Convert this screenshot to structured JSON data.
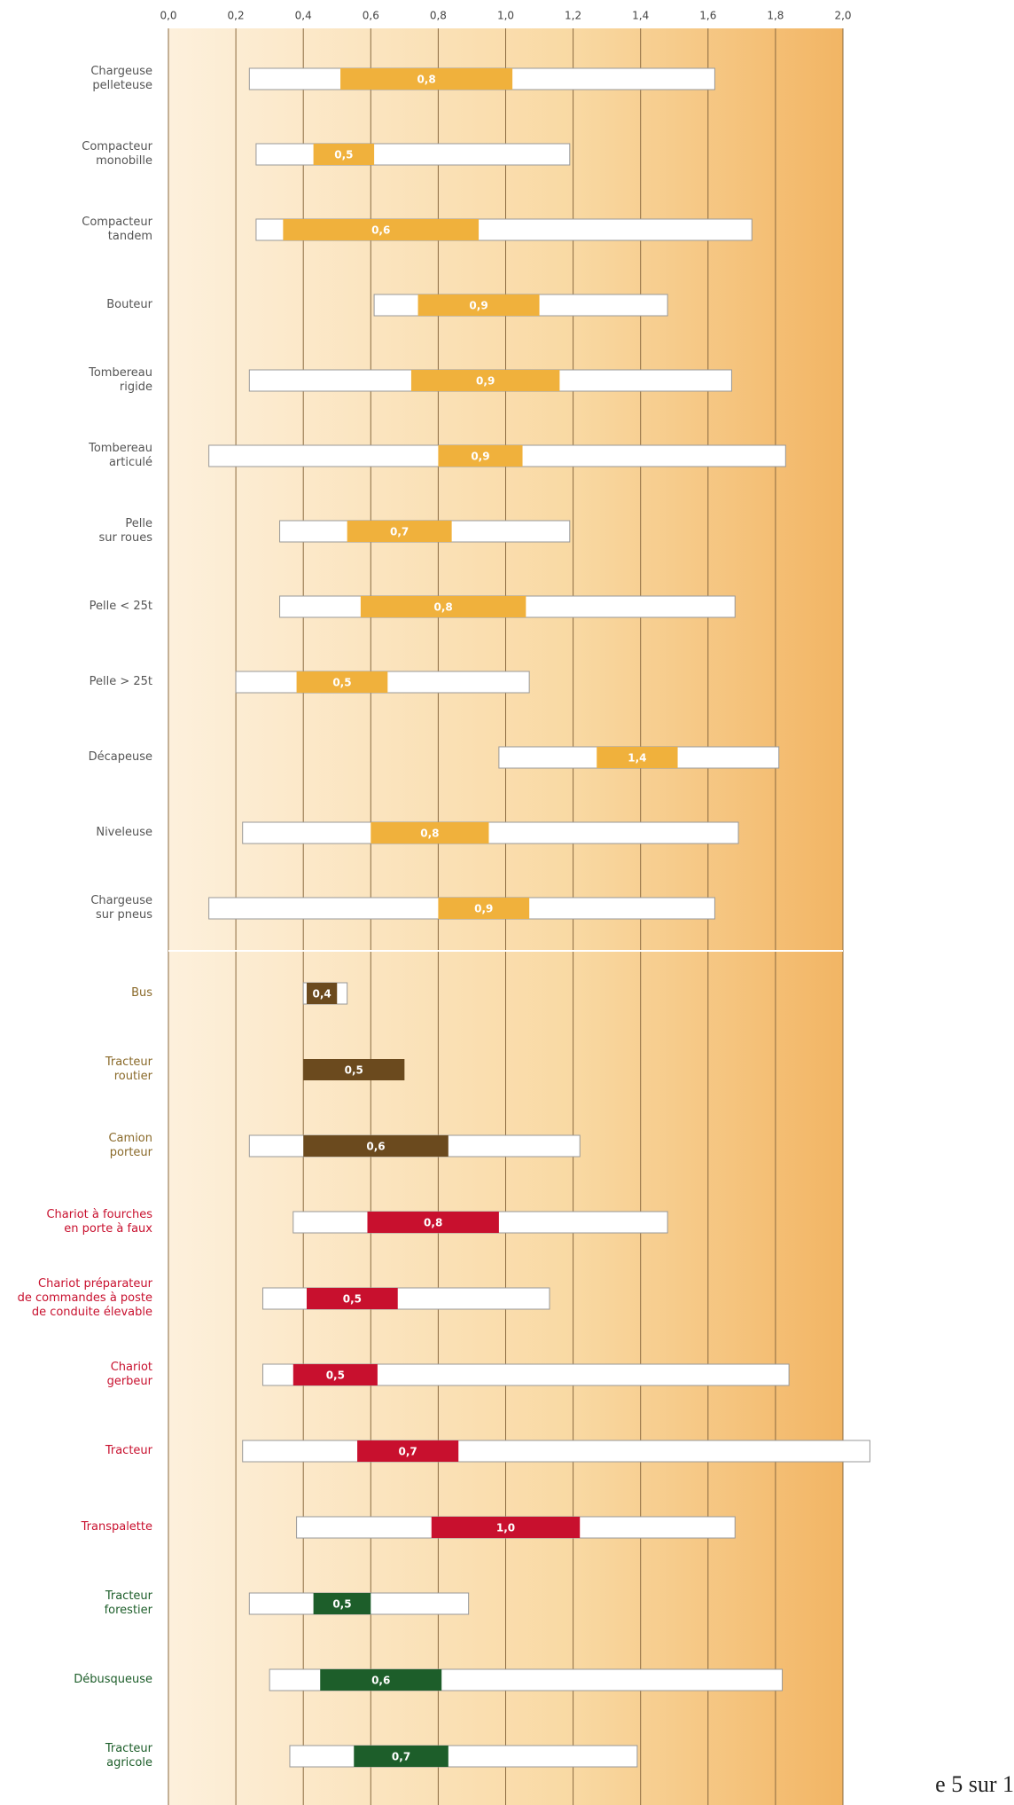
{
  "chart_data": {
    "type": "range-bar",
    "categories": [
      "Chargeuse\npelleteuse",
      "Compacteur\nmonobille",
      "Compacteur\ntandem",
      "Bouteur",
      "Tombereau\nrigide",
      "Tombereau\narticulé",
      "Pelle\nsur roues",
      "Pelle < 25t",
      "Pelle > 25t",
      "Décapeuse",
      "Niveleuse",
      "Chargeuse\nsur pneus",
      "Bus",
      "Tracteur\nroutier",
      "Camion\nporteur",
      "Chariot à fourches\nen porte à faux",
      "Chariot préparateur\nde commandes à poste\nde conduite élevable",
      "Chariot\ngerbeur",
      "Tracteur",
      "Transpalette",
      "Tracteur\nforestier",
      "Débusqueuse",
      "Tracteur\nagricole"
    ],
    "ranges": [
      [
        0.24,
        1.62
      ],
      [
        0.26,
        1.19
      ],
      [
        0.26,
        1.73
      ],
      [
        0.61,
        1.48
      ],
      [
        0.24,
        1.67
      ],
      [
        0.12,
        1.83
      ],
      [
        0.33,
        1.19
      ],
      [
        0.33,
        1.68
      ],
      [
        0.2,
        1.07
      ],
      [
        0.98,
        1.81
      ],
      [
        0.22,
        1.69
      ],
      [
        0.12,
        1.62
      ],
      [
        0.4,
        0.53
      ],
      null,
      [
        0.24,
        1.22
      ],
      [
        0.37,
        1.48
      ],
      [
        0.28,
        1.13
      ],
      [
        0.28,
        1.84
      ],
      [
        0.22,
        2.08
      ],
      [
        0.38,
        1.68
      ],
      [
        0.24,
        0.89
      ],
      [
        0.3,
        1.82
      ],
      [
        0.36,
        1.39
      ]
    ],
    "typical": [
      [
        0.51,
        1.02
      ],
      [
        0.43,
        0.61
      ],
      [
        0.34,
        0.92
      ],
      [
        0.74,
        1.1
      ],
      [
        0.72,
        1.16
      ],
      [
        0.8,
        1.05
      ],
      [
        0.53,
        0.84
      ],
      [
        0.57,
        1.06
      ],
      [
        0.38,
        0.65
      ],
      [
        1.27,
        1.51
      ],
      [
        0.6,
        0.95
      ],
      [
        0.8,
        1.07
      ],
      [
        0.41,
        0.5
      ],
      [
        0.4,
        0.7
      ],
      [
        0.4,
        0.83
      ],
      [
        0.59,
        0.98
      ],
      [
        0.41,
        0.68
      ],
      [
        0.37,
        0.62
      ],
      [
        0.56,
        0.86
      ],
      [
        0.78,
        1.22
      ],
      [
        0.43,
        0.6
      ],
      [
        0.45,
        0.81
      ],
      [
        0.55,
        0.83
      ]
    ],
    "values": [
      0.8,
      0.5,
      0.6,
      0.9,
      0.9,
      0.9,
      0.7,
      0.8,
      0.5,
      1.4,
      0.8,
      0.9,
      0.4,
      0.5,
      0.6,
      0.8,
      0.5,
      0.5,
      0.7,
      1.0,
      0.5,
      0.6,
      0.7
    ],
    "value_labels": [
      "0,8",
      "0,5",
      "0,6",
      "0,9",
      "0,9",
      "0,9",
      "0,7",
      "0,8",
      "0,5",
      "1,4",
      "0,8",
      "0,9",
      "0,4",
      "0,5",
      "0,6",
      "0,8",
      "0,5",
      "0,5",
      "0,7",
      "1,0",
      "0,5",
      "0,6",
      "0,7"
    ],
    "colors": [
      "#f0b13c",
      "#f0b13c",
      "#f0b13c",
      "#f0b13c",
      "#f0b13c",
      "#f0b13c",
      "#f0b13c",
      "#f0b13c",
      "#f0b13c",
      "#f0b13c",
      "#f0b13c",
      "#f0b13c",
      "#6b4a1e",
      "#6b4a1e",
      "#6b4a1e",
      "#c8102e",
      "#c8102e",
      "#c8102e",
      "#c8102e",
      "#c8102e",
      "#1d5e2a",
      "#1d5e2a",
      "#1d5e2a"
    ],
    "label_colors": [
      "#555555",
      "#555555",
      "#555555",
      "#555555",
      "#555555",
      "#555555",
      "#555555",
      "#555555",
      "#555555",
      "#555555",
      "#555555",
      "#555555",
      "#8a6a2a",
      "#8a6a2a",
      "#8a6a2a",
      "#c8102e",
      "#c8102e",
      "#c8102e",
      "#c8102e",
      "#c8102e",
      "#1d5e2a",
      "#1d5e2a",
      "#1d5e2a"
    ],
    "xlim": [
      0,
      2.0
    ],
    "xticks": [
      {
        "value": 0,
        "label": "0,0"
      },
      {
        "value": 0.2,
        "label": "0,2"
      },
      {
        "value": 0.4,
        "label": "0,4"
      },
      {
        "value": 0.6,
        "label": "0,6"
      },
      {
        "value": 0.8,
        "label": "0,8"
      },
      {
        "value": 1.0,
        "label": "1,0"
      },
      {
        "value": 1.2,
        "label": "1,2"
      },
      {
        "value": 1.4,
        "label": "1,4"
      },
      {
        "value": 1.6,
        "label": "1,6"
      },
      {
        "value": 1.8,
        "label": "1,8"
      },
      {
        "value": 2.0,
        "label": "2,0"
      }
    ],
    "grid": true
  },
  "page_footer": "e 5 sur 1"
}
